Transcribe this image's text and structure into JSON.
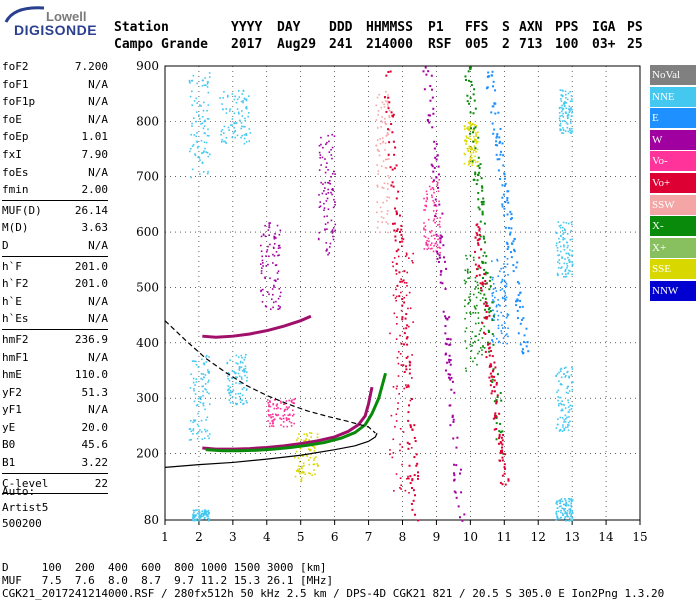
{
  "logo": {
    "line1": "Lowell",
    "line2": "DIGISONDE"
  },
  "header": {
    "row1": [
      "Station",
      "YYYY",
      "DAY",
      "DDD",
      "HHMMSS",
      "P1",
      "FFS",
      "S",
      "AXN",
      "PPS",
      "IGA",
      "PS"
    ],
    "row2": [
      "Campo Grande",
      "2017",
      "Aug29",
      "241",
      "214000",
      "RSF",
      "005",
      "2",
      "713",
      "100",
      "03+",
      "25"
    ]
  },
  "params": [
    {
      "label": "foF2",
      "value": "7.200"
    },
    {
      "label": "foF1",
      "value": "N/A"
    },
    {
      "label": "foF1p",
      "value": "N/A"
    },
    {
      "label": "foE",
      "value": "N/A"
    },
    {
      "label": "foEp",
      "value": "1.01"
    },
    {
      "label": "fxI",
      "value": "7.90"
    },
    {
      "label": "foEs",
      "value": "N/A"
    },
    {
      "label": "fmin",
      "value": "2.00"
    },
    {
      "sep": true
    },
    {
      "label": "MUF(D)",
      "value": "26.14"
    },
    {
      "label": "M(D)",
      "value": "3.63"
    },
    {
      "label": "D",
      "value": "N/A"
    },
    {
      "sep": true
    },
    {
      "label": "h`F",
      "value": "201.0"
    },
    {
      "label": "h`F2",
      "value": "201.0"
    },
    {
      "label": "h`E",
      "value": "N/A"
    },
    {
      "label": "h`Es",
      "value": "N/A"
    },
    {
      "sep": true
    },
    {
      "label": "hmF2",
      "value": "236.9"
    },
    {
      "label": "hmF1",
      "value": "N/A"
    },
    {
      "label": "hmE",
      "value": "110.0"
    },
    {
      "label": "yF2",
      "value": "51.3"
    },
    {
      "label": "yF1",
      "value": "N/A"
    },
    {
      "label": "yE",
      "value": "20.0"
    },
    {
      "label": "B0",
      "value": "45.6"
    },
    {
      "label": "B1",
      "value": "3.22"
    },
    {
      "sep": true
    },
    {
      "label": "C-level",
      "value": "22"
    },
    {
      "sep": true
    }
  ],
  "auto": {
    "line1": "Auto:",
    "line2": "Artist5",
    "line3": "500200"
  },
  "legend": [
    {
      "label": "NoVal",
      "color": "#808080"
    },
    {
      "label": "NNE",
      "color": "#44c8f0"
    },
    {
      "label": "E",
      "color": "#1e90ff"
    },
    {
      "label": "W",
      "color": "#a000a0"
    },
    {
      "label": "Vo-",
      "color": "#ff3399"
    },
    {
      "label": "Vo+",
      "color": "#dd0033"
    },
    {
      "label": "SSW",
      "color": "#f4a6a6"
    },
    {
      "label": "X-",
      "color": "#0a8a0a"
    },
    {
      "label": "X+",
      "color": "#88c060"
    },
    {
      "label": "SSE",
      "color": "#d8d800"
    },
    {
      "label": "NNW",
      "color": "#0000d0"
    }
  ],
  "footer": {
    "line1": "D     100  200  400  600  800 1000 1500 3000 [km]",
    "line2": "MUF   7.5  7.6  8.0  8.7  9.7 11.2 15.3 26.1 [MHz]",
    "line3": "CGK21_2017241214000.RSF / 280fx512h 50 kHz 2.5 km / DPS-4D CGK21 821 / 20.5 S 305.0 E Ion2Png 1.3.20"
  },
  "chart_data": {
    "type": "scatter",
    "title": "",
    "xlabel": "",
    "ylabel": "",
    "xlim": [
      1,
      15
    ],
    "ylim": [
      80,
      900
    ],
    "xticks": [
      1,
      2,
      3,
      4,
      5,
      6,
      7,
      8,
      9,
      10,
      11,
      12,
      13,
      14,
      15
    ],
    "yticks": [
      80,
      200,
      300,
      400,
      500,
      600,
      700,
      800,
      900
    ],
    "grid": true,
    "series": [
      {
        "name": "o-trace",
        "color": "#a0106a",
        "x": [
          2.1,
          2.5,
          3.0,
          3.5,
          4.0,
          4.5,
          5.0,
          5.5,
          6.0,
          6.4,
          6.7,
          6.9,
          7.0,
          7.1
        ],
        "y": [
          210,
          208,
          208,
          209,
          211,
          214,
          218,
          223,
          230,
          240,
          252,
          268,
          290,
          320
        ]
      },
      {
        "name": "x-trace",
        "color": "#0a8a0a",
        "x": [
          2.2,
          2.7,
          3.2,
          3.7,
          4.2,
          4.7,
          5.2,
          5.7,
          6.2,
          6.6,
          6.9,
          7.1,
          7.3,
          7.5
        ],
        "y": [
          207,
          205,
          205,
          206,
          208,
          211,
          215,
          220,
          228,
          238,
          252,
          272,
          300,
          345
        ]
      },
      {
        "name": "multihop",
        "color": "#a0106a",
        "x": [
          2.1,
          2.5,
          3.0,
          3.5,
          4.0,
          4.5,
          5.0,
          5.3
        ],
        "y": [
          412,
          410,
          412,
          416,
          422,
          430,
          440,
          448
        ]
      },
      {
        "name": "profile-solid",
        "color": "#000000",
        "x": [
          1.0,
          2.0,
          3.0,
          4.0,
          5.0,
          6.0,
          6.6,
          7.0,
          7.2,
          7.25
        ],
        "y": [
          175,
          180,
          184,
          190,
          197,
          207,
          214,
          222,
          230,
          237
        ]
      },
      {
        "name": "profile-dashed",
        "color": "#000000",
        "x": [
          1.0,
          1.6,
          2.2,
          2.8,
          3.4,
          4.0,
          4.6,
          5.2,
          5.8,
          6.4,
          7.0,
          7.2
        ],
        "y": [
          440,
          405,
          372,
          346,
          323,
          305,
          290,
          277,
          267,
          258,
          248,
          237
        ]
      }
    ],
    "scatter_groups": [
      {
        "color": "#44c8f0",
        "x": [
          1.7,
          2.3
        ],
        "y": [
          700,
          890
        ]
      },
      {
        "color": "#44c8f0",
        "x": [
          1.7,
          2.3
        ],
        "y": [
          225,
          380
        ]
      },
      {
        "color": "#44c8f0",
        "x": [
          2.6,
          3.5
        ],
        "y": [
          760,
          860
        ]
      },
      {
        "color": "#44c8f0",
        "x": [
          2.8,
          3.4
        ],
        "y": [
          290,
          380
        ]
      },
      {
        "color": "#44c8f0",
        "x": [
          1.8,
          2.3
        ],
        "y": [
          80,
          100
        ]
      },
      {
        "color": "#a000a0",
        "x": [
          3.8,
          4.4
        ],
        "y": [
          460,
          620
        ]
      },
      {
        "color": "#a000a0",
        "x": [
          5.5,
          6.0
        ],
        "y": [
          560,
          780
        ]
      },
      {
        "color": "#ff3399",
        "x": [
          4.0,
          4.8
        ],
        "y": [
          250,
          300
        ]
      },
      {
        "color": "#d8d800",
        "x": [
          4.8,
          5.5
        ],
        "y": [
          150,
          240
        ]
      },
      {
        "color": "#f4a6a6",
        "x": [
          7.2,
          7.6
        ],
        "y": [
          600,
          860
        ]
      },
      {
        "color": "#dd0033",
        "x": [
          7.6,
          8.3
        ],
        "y": [
          120,
          600
        ]
      },
      {
        "color": "#ff3399",
        "x": [
          8.6,
          9.1
        ],
        "y": [
          560,
          700
        ]
      },
      {
        "color": "#0a8a0a",
        "x": [
          9.8,
          10.4
        ],
        "y": [
          350,
          560
        ]
      },
      {
        "color": "#d8d800",
        "x": [
          9.8,
          10.2
        ],
        "y": [
          720,
          800
        ]
      },
      {
        "color": "#1e90ff",
        "x": [
          10.6,
          11.1
        ],
        "y": [
          400,
          560
        ]
      },
      {
        "color": "#44c8f0",
        "x": [
          12.5,
          13.0
        ],
        "y": [
          520,
          620
        ]
      },
      {
        "color": "#44c8f0",
        "x": [
          12.5,
          13.0
        ],
        "y": [
          240,
          360
        ]
      },
      {
        "color": "#44c8f0",
        "x": [
          12.6,
          13.0
        ],
        "y": [
          780,
          860
        ]
      },
      {
        "color": "#44c8f0",
        "x": [
          12.5,
          13.0
        ],
        "y": [
          80,
          120
        ]
      }
    ]
  }
}
